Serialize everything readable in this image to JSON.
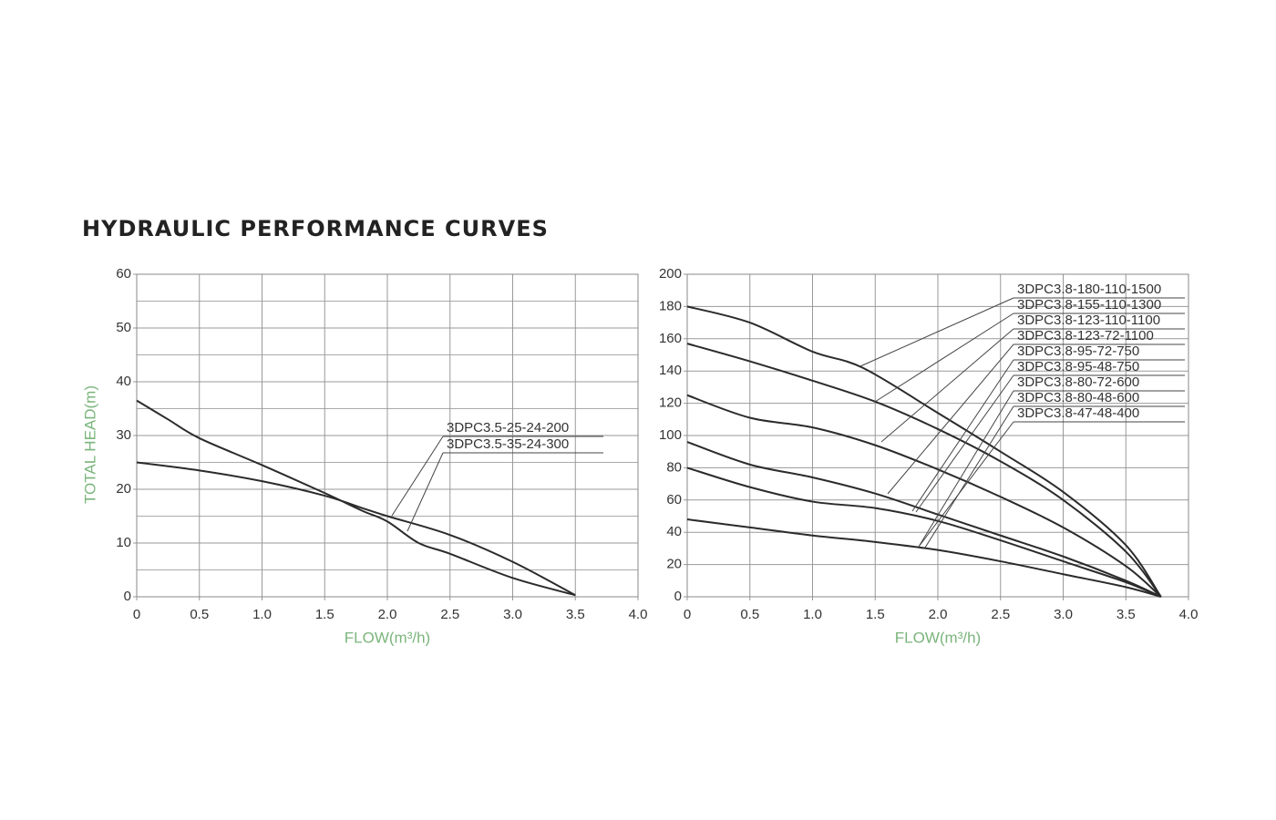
{
  "title": "HYDRAULIC PERFORMANCE CURVES",
  "chart_data": [
    {
      "type": "line",
      "y_label": "TOTAL HEAD(m)",
      "x_label": "FLOW(m³/h)",
      "xlim": [
        0,
        4
      ],
      "ylim": [
        0,
        60
      ],
      "xticks": [
        0,
        0.5,
        {
          "value": 1,
          "label": "1.0"
        },
        1.5,
        {
          "value": 2,
          "label": "2.0"
        },
        2.5,
        {
          "value": 3,
          "label": "3.0"
        },
        3.5,
        {
          "value": 4,
          "label": "4.0"
        }
      ],
      "yticks": [
        0,
        10,
        20,
        30,
        40,
        50,
        60
      ],
      "minor_yticks": [
        5,
        15,
        25,
        35,
        45,
        55
      ],
      "grid": true,
      "series": [
        {
          "name": "3DPC3.5-25-24-200",
          "color": "#2b2b2b",
          "x": [
            0,
            0.5,
            1.0,
            1.5,
            1.8,
            2.0,
            2.5,
            3.0,
            3.5
          ],
          "values": [
            25,
            23.5,
            21.5,
            18.8,
            16.5,
            15,
            11.5,
            6.5,
            0.3
          ]
        },
        {
          "name": "3DPC3.5-35-24-300",
          "color": "#2b2b2b",
          "x": [
            0,
            0.25,
            0.5,
            1.0,
            1.5,
            1.8,
            2.0,
            2.25,
            2.5,
            3.0,
            3.5
          ],
          "values": [
            36.5,
            33,
            29.5,
            24.5,
            19.3,
            16,
            14,
            10,
            8,
            3.5,
            0.3
          ]
        }
      ]
    },
    {
      "type": "line",
      "x_label": "FLOW(m³/h)",
      "xlim": [
        0,
        4
      ],
      "ylim": [
        0,
        200
      ],
      "xticks": [
        0,
        0.5,
        {
          "value": 1,
          "label": "1.0"
        },
        1.5,
        {
          "value": 2,
          "label": "2.0"
        },
        2.5,
        {
          "value": 3,
          "label": "3.0"
        },
        3.5,
        {
          "value": 4,
          "label": "4.0"
        }
      ],
      "yticks": [
        0,
        20,
        40,
        60,
        80,
        100,
        120,
        140,
        160,
        180,
        200
      ],
      "grid": true,
      "series": [
        {
          "color": "#2b2b2b",
          "x": [
            0,
            0.5,
            1.0,
            1.4,
            2.0,
            2.5,
            3.0,
            3.5,
            3.78
          ],
          "values": [
            180,
            170,
            152,
            142,
            114,
            90,
            65,
            32,
            0
          ]
        },
        {
          "color": "#2b2b2b",
          "x": [
            0,
            0.5,
            1.0,
            1.5,
            2.0,
            2.5,
            3.0,
            3.5,
            3.78
          ],
          "values": [
            157,
            146,
            134,
            121,
            104,
            84,
            60,
            28,
            0
          ]
        },
        {
          "color": "#2b2b2b",
          "x": [
            0,
            0.5,
            1.0,
            1.5,
            2.0,
            2.5,
            3.0,
            3.5,
            3.78
          ],
          "values": [
            125,
            111,
            105,
            94,
            79,
            62,
            43,
            19,
            0
          ]
        },
        {
          "color": "#2b2b2b",
          "x": [
            0,
            0.5,
            1.0,
            1.5,
            2.0,
            2.5,
            3.0,
            3.5,
            3.78
          ],
          "values": [
            96,
            82,
            74,
            64,
            51,
            38,
            25,
            10,
            0
          ]
        },
        {
          "color": "#2b2b2b",
          "x": [
            0,
            0.5,
            1.0,
            1.5,
            2.0,
            2.5,
            3.0,
            3.5,
            3.78
          ],
          "values": [
            80,
            68,
            59,
            55,
            47,
            35,
            22,
            9,
            0
          ]
        },
        {
          "color": "#2b2b2b",
          "x": [
            0,
            0.5,
            1.0,
            1.5,
            2.0,
            2.5,
            3.0,
            3.5,
            3.78
          ],
          "values": [
            48,
            43,
            38,
            34,
            29,
            22,
            14,
            6,
            0
          ]
        }
      ],
      "annotations": [
        "3DPC3.8-180-110-1500",
        "3DPC3.8-155-110-1300",
        "3DPC3.8-123-110-1100",
        "3DPC3.8-123-72-1100",
        "3DPC3.8-95-72-750",
        "3DPC3.8-95-48-750",
        "3DPC3.8-80-72-600",
        "3DPC3.8-80-48-600",
        "3DPC3.8-47-48-400"
      ]
    }
  ]
}
